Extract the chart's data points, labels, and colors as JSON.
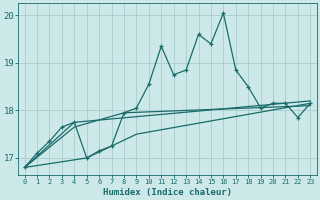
{
  "title": "",
  "xlabel": "Humidex (Indice chaleur)",
  "xlim": [
    -0.5,
    23.5
  ],
  "ylim": [
    16.65,
    20.25
  ],
  "yticks": [
    17,
    18,
    19,
    20
  ],
  "xticks": [
    0,
    1,
    2,
    3,
    4,
    5,
    6,
    7,
    8,
    9,
    10,
    11,
    12,
    13,
    14,
    15,
    16,
    17,
    18,
    19,
    20,
    21,
    22,
    23
  ],
  "background_color": "#cce8e8",
  "grid_color": "#aacccc",
  "line_color": "#1a6b6b",
  "line1_x": [
    0,
    1,
    2,
    3,
    4,
    5,
    6,
    7,
    8,
    9,
    10,
    11,
    12,
    13,
    14,
    15,
    16,
    17,
    18,
    19,
    20,
    21,
    22,
    23
  ],
  "line1_y": [
    16.8,
    17.1,
    17.35,
    17.65,
    17.75,
    17.0,
    17.15,
    17.25,
    17.95,
    18.05,
    18.55,
    19.35,
    18.75,
    18.85,
    19.6,
    19.4,
    20.05,
    18.85,
    18.5,
    18.05,
    18.15,
    18.15,
    17.85,
    18.15
  ],
  "line2_x": [
    0,
    5,
    9,
    23
  ],
  "line2_y": [
    16.8,
    17.0,
    17.5,
    18.15
  ],
  "line3_x": [
    0,
    4,
    23
  ],
  "line3_y": [
    16.8,
    17.75,
    18.2
  ],
  "line4_x": [
    0,
    4,
    8,
    23
  ],
  "line4_y": [
    16.8,
    17.65,
    17.95,
    18.1
  ]
}
